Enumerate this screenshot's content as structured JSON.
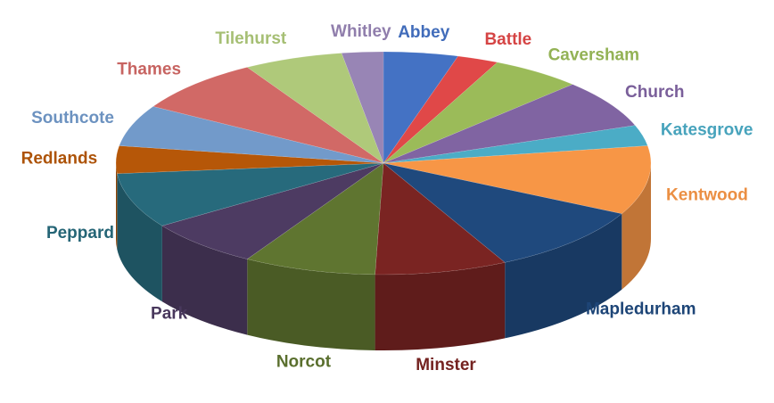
{
  "chart_data": {
    "type": "pie3d",
    "categories": [
      "Abbey",
      "Battle",
      "Caversham",
      "Church",
      "Katesgrove",
      "Kentwood",
      "Mapledurham",
      "Minster",
      "Norcot",
      "Park",
      "Peppard",
      "Redlands",
      "Southcote",
      "Thames",
      "Tilehurst",
      "Whitley"
    ],
    "values": [
      4.5,
      2.5,
      5.5,
      7,
      3,
      10,
      10,
      8,
      8,
      7,
      8,
      4,
      6,
      8,
      6,
      2.5
    ],
    "colors": [
      "#4472c4",
      "#e04848",
      "#9bbb59",
      "#8064a2",
      "#4bacc6",
      "#f79646",
      "#1f497d",
      "#7a2422",
      "#5f7530",
      "#4d3b62",
      "#276a7c",
      "#b65708",
      "#729aca",
      "#d16966",
      "#afc97a",
      "#9885b5"
    ]
  }
}
